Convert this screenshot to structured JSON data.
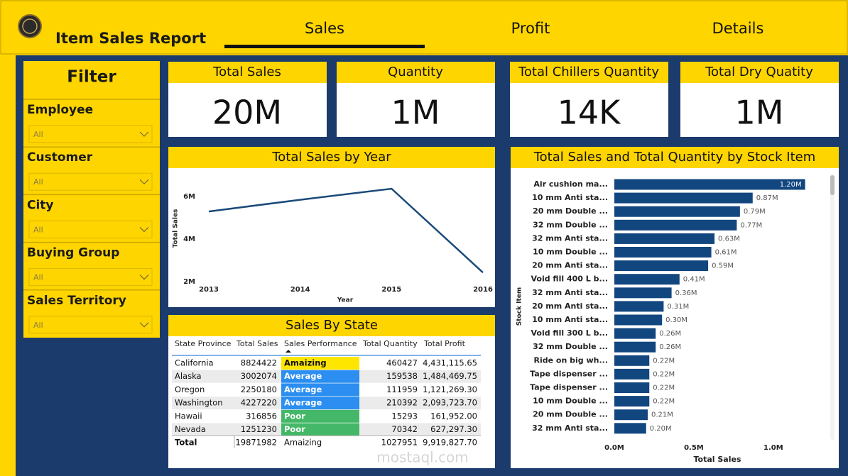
{
  "header": {
    "title": "Item Sales Report",
    "tabs": [
      "Sales",
      "Profit",
      "Details"
    ]
  },
  "filter": {
    "title": "Filter",
    "fields": [
      {
        "label": "Employee",
        "value": "All"
      },
      {
        "label": "Customer",
        "value": "All"
      },
      {
        "label": "City",
        "value": "All"
      },
      {
        "label": "Buying Group",
        "value": "All"
      },
      {
        "label": "Sales Territory",
        "value": "All"
      }
    ]
  },
  "kpis": [
    {
      "title": "Total Sales",
      "value": "20M"
    },
    {
      "title": "Quantity",
      "value": "1M"
    },
    {
      "title": "Total Chillers Quantity",
      "value": "14K"
    },
    {
      "title": "Total Dry Quatity",
      "value": "1M"
    }
  ],
  "line_chart": {
    "type": "line",
    "title": "Total Sales by Year",
    "x": [
      2013,
      2014,
      2015,
      2016
    ],
    "values": [
      5.3,
      5.85,
      6.37,
      2.43
    ],
    "color": "#1a4a7a",
    "xlim": [
      2013,
      2016
    ],
    "xticks": [
      2013,
      2014,
      2015,
      2016
    ],
    "ylim": [
      1.67,
      7.07
    ],
    "yticks": [
      {
        "value": 2,
        "label": "2M"
      },
      {
        "value": 4,
        "label": "4M"
      },
      {
        "value": 6,
        "label": "6M"
      }
    ],
    "y_label": "Total Sales",
    "x_label": "Year"
  },
  "bar_chart": {
    "type": "bar",
    "title": "Total Sales and Total Quantity by Stock Item",
    "categories": [
      "Air cushion ma...",
      "10 mm Anti sta...",
      "20 mm Double ...",
      "32 mm Double ...",
      "32 mm Anti sta...",
      "10 mm Double ...",
      "20 mm Anti sta...",
      "Void fill 400 L b...",
      "32 mm Anti sta...",
      "20 mm Anti sta...",
      "10 mm Anti sta...",
      "Void fill 300 L b...",
      "32 mm Double ...",
      "Ride on big wh...",
      "Tape dispenser ...",
      "Tape dispenser ...",
      "10 mm Double ...",
      "20 mm Double ...",
      "32 mm Anti sta..."
    ],
    "values": [
      1.2,
      0.87,
      0.79,
      0.77,
      0.63,
      0.61,
      0.59,
      0.41,
      0.36,
      0.31,
      0.3,
      0.26,
      0.26,
      0.22,
      0.22,
      0.22,
      0.22,
      0.21,
      0.2
    ],
    "value_labels": [
      "1.20M",
      "0.87M",
      "0.79M",
      "0.77M",
      "0.63M",
      "0.61M",
      "0.59M",
      "0.41M",
      "0.36M",
      "0.31M",
      "0.30M",
      "0.26M",
      "0.26M",
      "0.22M",
      "0.22M",
      "0.22M",
      "0.22M",
      "0.21M",
      "0.20M"
    ],
    "color": "#12467f",
    "xlim": [
      0,
      1.34
    ],
    "xticks": [
      {
        "value": 0,
        "label": "0.0M"
      },
      {
        "value": 0.5,
        "label": "0.5M"
      },
      {
        "value": 1,
        "label": "1.0M"
      }
    ],
    "x_label": "Total Sales",
    "y_label": "Stock Item"
  },
  "table": {
    "title": "Sales By State",
    "columns": [
      "State Province",
      "Total Sales",
      "Sales Performance",
      "Total Quantity",
      "Total Profit"
    ],
    "rows": [
      [
        "California",
        8824422,
        "Amaizing",
        460427,
        "4,431,115.65"
      ],
      [
        "Alaska",
        3002074,
        "Average",
        159538,
        "1,484,469.75"
      ],
      [
        "Oregon",
        2250180,
        "Average",
        111959,
        "1,121,269.30"
      ],
      [
        "Washington",
        4227220,
        "Average",
        210392,
        "2,093,723.70"
      ],
      [
        "Hawaii",
        316856,
        "Poor",
        15293,
        "161,952.00"
      ],
      [
        "Nevada",
        1251230,
        "Poor",
        70342,
        "627,297.30"
      ]
    ],
    "row_colors": [
      "#ffe600",
      "#2b8ef0",
      "#2b8ef0",
      "#2b8ef0",
      "#44b868",
      "#44b868"
    ],
    "total": [
      "Total",
      19871982,
      "Amaizing",
      1027951,
      "9,919,827.70"
    ]
  },
  "watermark": "mostaql.com"
}
